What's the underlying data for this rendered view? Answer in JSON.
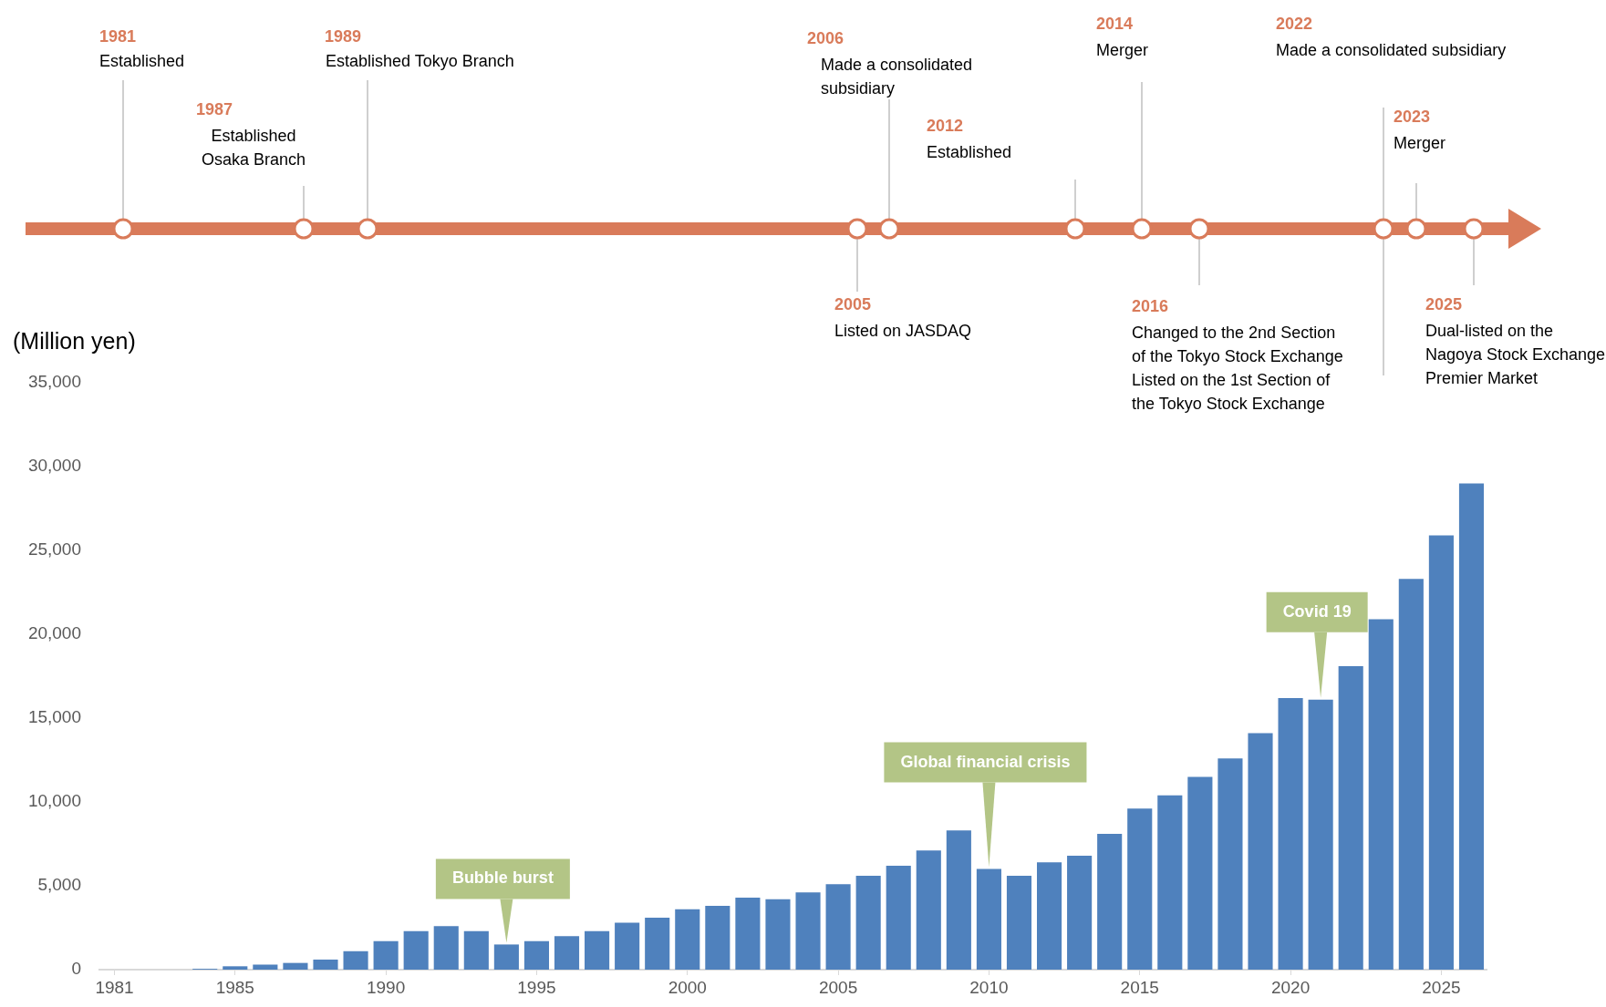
{
  "chart_data": {
    "type": "bar",
    "ylabel": "(Million yen)",
    "x": [
      1981,
      1982,
      1983,
      1984,
      1985,
      1986,
      1987,
      1988,
      1989,
      1990,
      1991,
      1992,
      1993,
      1994,
      1995,
      1996,
      1997,
      1998,
      1999,
      2000,
      2001,
      2002,
      2003,
      2004,
      2005,
      2006,
      2007,
      2008,
      2009,
      2010,
      2011,
      2012,
      2013,
      2014,
      2015,
      2016,
      2017,
      2018,
      2019,
      2020,
      2021,
      2022,
      2023,
      2024,
      2025,
      2026
    ],
    "values": [
      0,
      0,
      0,
      50,
      200,
      300,
      400,
      600,
      1100,
      1700,
      2300,
      2600,
      2300,
      1500,
      1700,
      2000,
      2300,
      2800,
      3100,
      3600,
      3800,
      4300,
      4200,
      4600,
      5100,
      5600,
      6200,
      7100,
      8300,
      6000,
      5600,
      6400,
      6800,
      8100,
      9600,
      10400,
      11500,
      12600,
      14100,
      16200,
      16100,
      18100,
      20900,
      23300,
      25900,
      29000
    ],
    "color": "#4f81bd",
    "xlim": [
      1980.5,
      2026.5
    ],
    "xticks": [
      1981,
      1985,
      1990,
      1995,
      2000,
      2005,
      2010,
      2015,
      2020,
      2025
    ],
    "ylim": [
      0,
      35000
    ],
    "yticks": [
      0,
      {
        "value": 5000,
        "label": "5,000"
      },
      {
        "value": 10000,
        "label": "10,000"
      },
      {
        "value": 15000,
        "label": "15,000"
      },
      {
        "value": 20000,
        "label": "20,000"
      },
      {
        "value": 25000,
        "label": "25,000"
      },
      {
        "value": 30000,
        "label": "30,000"
      },
      {
        "value": 35000,
        "label": "35,000"
      }
    ],
    "grid": false,
    "legend": false,
    "annotations": [
      "1981",
      "Established",
      "1987",
      "Established\nOsaka Branch",
      "1989",
      "Established Tokyo Branch",
      "2005",
      "Listed on JASDAQ",
      "2006",
      "Made a consolidated\nsubsidiary",
      "2012",
      "Established",
      "2014",
      "Merger",
      "2016",
      "Changed to the 2nd Section\nof the Tokyo Stock Exchange\nListed on the 1st Section of\nthe Tokyo Stock Exchange",
      "2022",
      "Made a consolidated subsidiary",
      "2023",
      "Merger",
      "2025",
      "Dual-listed on the\nNagoya Stock Exchange\nPremier Market",
      {
        "text": "Bubble burst",
        "x": 1994,
        "y": 1500
      },
      {
        "text": "Global financial crisis",
        "x": 2010,
        "y": 6000
      },
      {
        "text": "Covid 19",
        "x": 2021,
        "y": 16100
      }
    ]
  }
}
